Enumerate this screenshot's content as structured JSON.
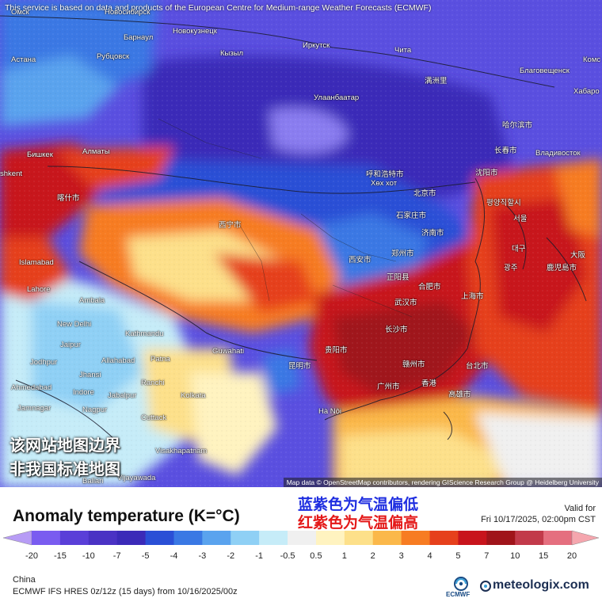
{
  "map": {
    "disclaimer": "This service is based on data and products of the European Centre for Medium-range Weather Forecasts (ECMWF)",
    "attribution": "Map data © OpenStreetMap contributors, rendering GIScience Research Group @ Heidelberg University",
    "border_note_line1": "该网站地图边界",
    "border_note_line2": "非我国标准地图",
    "cities": [
      {
        "name": "Омск"
      },
      {
        "name": "Новосибирск"
      },
      {
        "name": "Барнаул"
      },
      {
        "name": "Новокузнецк"
      },
      {
        "name": "Рубцовск"
      },
      {
        "name": "Астана"
      },
      {
        "name": "Кызыл"
      },
      {
        "name": "Иркутск"
      },
      {
        "name": "Чита"
      },
      {
        "name": "Благовещенск"
      },
      {
        "name": "Хабаро"
      },
      {
        "name": "Комс"
      },
      {
        "name": "Улаанбаатар"
      },
      {
        "name": "满洲里"
      },
      {
        "name": "哈尔滨市"
      },
      {
        "name": "长春市"
      },
      {
        "name": "Владивосток"
      },
      {
        "name": "Бишкек"
      },
      {
        "name": "Алматы"
      },
      {
        "name": "shkent"
      },
      {
        "name": "喀什市"
      },
      {
        "name": "呼和浩特市"
      },
      {
        "name": "Хөх хот"
      },
      {
        "name": "沈阳市"
      },
      {
        "name": "北京市"
      },
      {
        "name": "평양직할시"
      },
      {
        "name": "서울"
      },
      {
        "name": "石家庄市"
      },
      {
        "name": "济南市"
      },
      {
        "name": "西宁市"
      },
      {
        "name": "西安市"
      },
      {
        "name": "郑州市"
      },
      {
        "name": "Islamabad"
      },
      {
        "name": "正阳县"
      },
      {
        "name": "合肥市"
      },
      {
        "name": "Lahore"
      },
      {
        "name": "Ambala"
      },
      {
        "name": "武汉市"
      },
      {
        "name": "上海市"
      },
      {
        "name": "New Delhi"
      },
      {
        "name": "Kathmandu"
      },
      {
        "name": "长沙市"
      },
      {
        "name": "Jaipur"
      },
      {
        "name": "Guwahati"
      },
      {
        "name": "贵阳市"
      },
      {
        "name": "Jodhpur"
      },
      {
        "name": "Allahabad"
      },
      {
        "name": "Patna"
      },
      {
        "name": "昆明市"
      },
      {
        "name": "赣州市"
      },
      {
        "name": "台北市"
      },
      {
        "name": "Jhansi"
      },
      {
        "name": "Ranchi"
      },
      {
        "name": "Ahmedabad"
      },
      {
        "name": "Indore"
      },
      {
        "name": "Jabalpur"
      },
      {
        "name": "Kolkata"
      },
      {
        "name": "广州市"
      },
      {
        "name": "香港"
      },
      {
        "name": "高雄市"
      },
      {
        "name": "Jamnagar"
      },
      {
        "name": "Nagpur"
      },
      {
        "name": "Cuttack"
      },
      {
        "name": "Hà Nội"
      },
      {
        "name": "Visakhapatnam"
      },
      {
        "name": "Vijayawada"
      },
      {
        "name": "Ballari"
      },
      {
        "name": "대구"
      },
      {
        "name": "광주"
      },
      {
        "name": "鹿児島市"
      },
      {
        "name": "大阪"
      }
    ]
  },
  "legend": {
    "title": "Anomaly temperature (K=°C)",
    "note_cold": "蓝紫色为气温偏低",
    "note_warm": "红紫色为气温偏高",
    "valid_label": "Valid for",
    "valid_time": "Fri 10/17/2025, 02:00pm CST",
    "ticks": [
      "-20",
      "-15",
      "-10",
      "-7",
      "-5",
      "-4",
      "-3",
      "-2",
      "-1",
      "-0.5",
      "0.5",
      "1",
      "2",
      "3",
      "4",
      "5",
      "7",
      "10",
      "15",
      "20"
    ],
    "colors": [
      "#b79cf5",
      "#7a5cf0",
      "#5a3fd8",
      "#4a32c4",
      "#3b2ab8",
      "#2a4fd6",
      "#3a78e4",
      "#5aa3ee",
      "#8fd0f5",
      "#c6ecf8",
      "#f0f0f0",
      "#fff3c0",
      "#fde08a",
      "#fbb84a",
      "#f77c22",
      "#e6401c",
      "#c8141c",
      "#a0141a",
      "#c23a4a",
      "#e56f7f",
      "#f5a6ae"
    ]
  },
  "footer": {
    "region": "China",
    "model_line": "ECMWF IFS HRES 0z/12z (15 days) from 10/16/2025/00z",
    "ecmwf_label": "ECMWF",
    "site_logo": "meteologix.com"
  }
}
